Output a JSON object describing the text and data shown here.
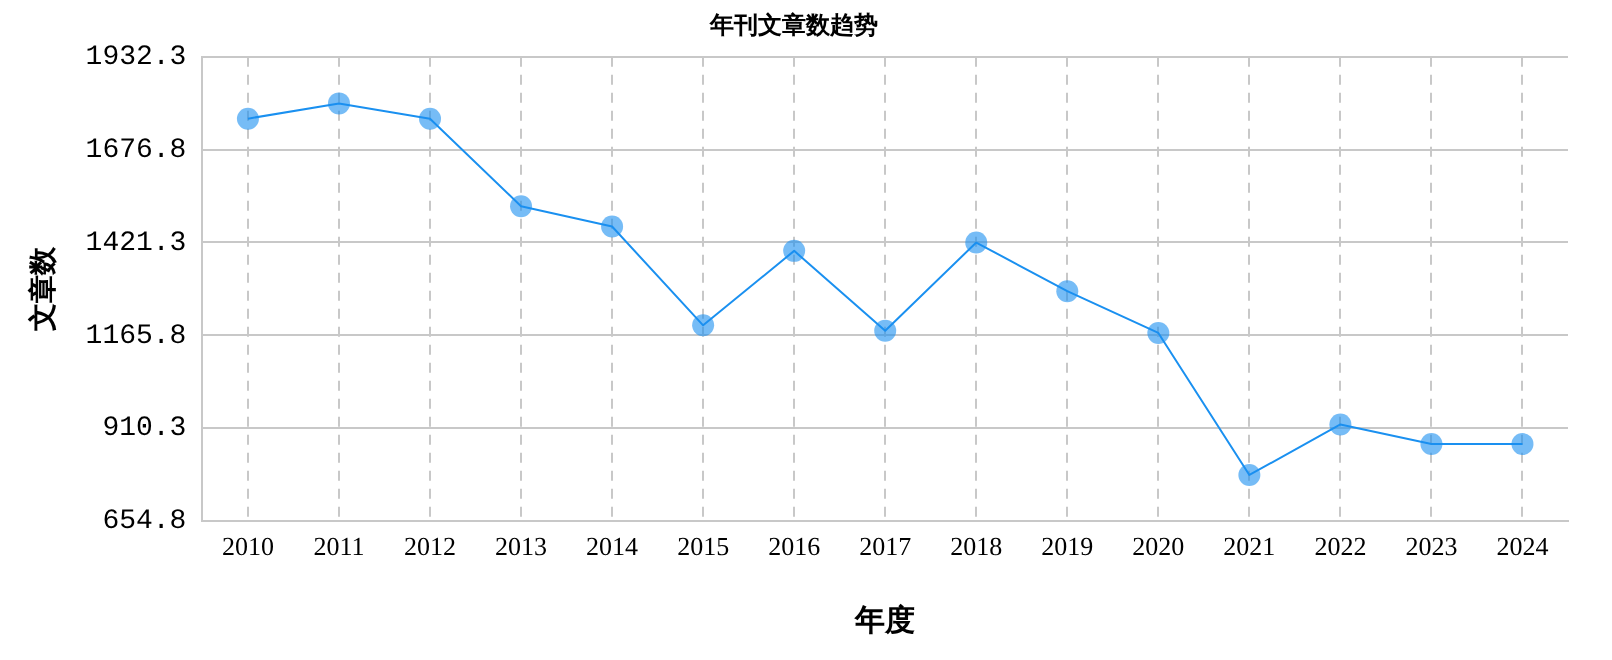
{
  "chart_data": {
    "type": "line",
    "title": "年刊文章数趋势",
    "xlabel": "年度",
    "ylabel": "文章数",
    "categories": [
      "2010",
      "2011",
      "2012",
      "2013",
      "2014",
      "2015",
      "2016",
      "2017",
      "2018",
      "2019",
      "2020",
      "2021",
      "2022",
      "2023",
      "2024"
    ],
    "series": [
      {
        "color": "#1a90f0",
        "values": [
          1762,
          1804,
          1762,
          1521,
          1465,
          1193,
          1398,
          1178,
          1421,
          1287,
          1172,
          781,
          920,
          866,
          866
        ]
      }
    ],
    "ylim": [
      654.8,
      1932.3
    ],
    "yticks": [
      654.8,
      910.3,
      1165.8,
      1421.3,
      1676.8,
      1932.3
    ],
    "grid": true,
    "legend": false,
    "marker": "circle",
    "line_style": "solid"
  }
}
